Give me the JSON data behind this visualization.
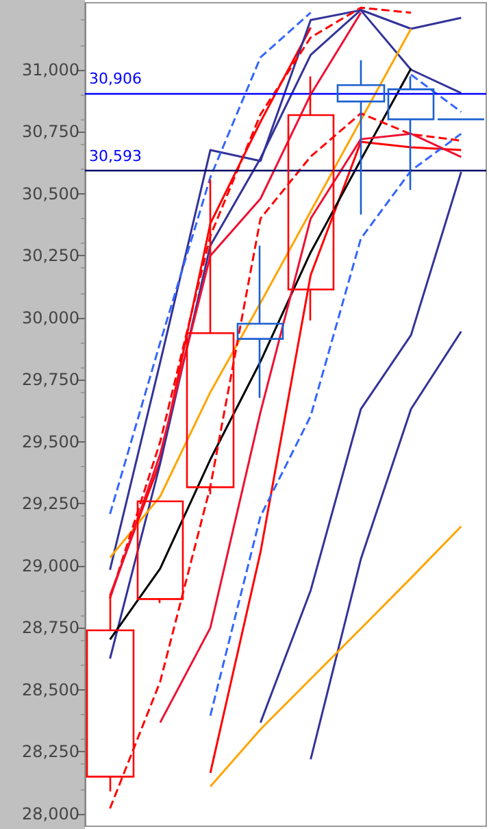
{
  "chart_data": {
    "type": "candlestick",
    "categories": [
      null,
      null,
      null,
      null,
      null,
      null,
      null,
      null
    ],
    "ohlc": [
      [
        28740,
        28880,
        28090,
        28150
      ],
      [
        29260,
        29260,
        28850,
        28866
      ],
      [
        29938,
        30557,
        29288,
        29317
      ],
      [
        29915,
        30291,
        29677,
        29976
      ],
      [
        30817,
        30973,
        29989,
        30114
      ],
      [
        30872,
        31038,
        30416,
        30938
      ],
      [
        30800,
        30973,
        30515,
        30921
      ],
      [
        30800,
        30800,
        30800,
        30800
      ]
    ],
    "colors": [
      "#ff0000",
      "#ff0000",
      "#ff0000",
      "#1a5fd0",
      "#ff0000",
      "#1a5fd0",
      "#1a5fd0",
      "#1a5fd0"
    ],
    "series": [
      {
        "type": "line",
        "color": "#ff0000",
        "values": [
          28880,
          29420,
          30380,
          30790,
          31170,
          null,
          null,
          null
        ]
      },
      {
        "type": "line",
        "color": "#ff0000",
        "values": [
          null,
          null,
          28165,
          29055,
          30172,
          30709,
          30687,
          30676
        ]
      },
      {
        "type": "line",
        "color": "#333399",
        "values": [
          28626,
          29412,
          30291,
          30643,
          31060,
          31241,
          31165,
          31209
        ]
      },
      {
        "type": "line",
        "color": "#333399",
        "values": [
          null,
          null,
          null,
          null,
          28220,
          29027,
          29632,
          29945
        ]
      },
      {
        "type": "line",
        "color": "#333399",
        "values": [
          28984,
          29820,
          30676,
          30632,
          31200,
          31240,
          31000,
          30906
        ]
      },
      {
        "type": "line",
        "color": "#333399",
        "values": [
          null,
          null,
          null,
          28368,
          28901,
          29632,
          29930,
          30588
        ]
      },
      {
        "type": "line",
        "color": "#ffa500",
        "values": [
          29033,
          29280,
          29700,
          30060,
          30429,
          30797,
          31165,
          null
        ]
      },
      {
        "type": "line",
        "color": "#ffa500",
        "values": [
          null,
          null,
          28110,
          28341,
          28544,
          28747,
          28951,
          29159
        ]
      },
      {
        "type": "line",
        "color": "#000000",
        "values": [
          28703,
          28989,
          29429,
          29824,
          30264,
          30637,
          31005,
          null
        ]
      },
      {
        "type": "line",
        "color": "#3366ff",
        "line_style": "dashed",
        "values": [
          29209,
          29900,
          30566,
          31050,
          31230,
          null,
          30980,
          30830
        ]
      },
      {
        "type": "line",
        "color": "#3366ff",
        "line_style": "dashed",
        "values": [
          null,
          null,
          28396,
          29200,
          29604,
          30319,
          30593,
          30742
        ]
      },
      {
        "type": "line",
        "color": "#ff0000",
        "line_style": "dashed",
        "values": [
          28870,
          29500,
          30330,
          30820,
          31130,
          31250,
          31230,
          null
        ]
      },
      {
        "type": "line",
        "color": "#ff0000",
        "line_style": "dashed",
        "values": [
          28022,
          28533,
          29319,
          30400,
          30650,
          30824,
          30740,
          30714
        ]
      },
      {
        "type": "line",
        "color": "#ee1133",
        "values": [
          null,
          28368,
          28750,
          29620,
          30400,
          30720,
          30742,
          30648
        ]
      },
      {
        "type": "line",
        "color": "#ee1133",
        "values": [
          28870,
          29450,
          30250,
          30480,
          30900,
          31230,
          null,
          null
        ]
      }
    ],
    "ylim": [
      27950,
      31270
    ],
    "yticks": [
      {
        "value": 28000,
        "label": "28,000"
      },
      {
        "value": 28250,
        "label": "28,250"
      },
      {
        "value": 28500,
        "label": "28,500"
      },
      {
        "value": 28750,
        "label": "28,750"
      },
      {
        "value": 29000,
        "label": "29,000"
      },
      {
        "value": 29250,
        "label": "29,250"
      },
      {
        "value": 29500,
        "label": "29,500"
      },
      {
        "value": 29750,
        "label": "29,750"
      },
      {
        "value": 30000,
        "label": "30,000"
      },
      {
        "value": 30250,
        "label": "30,250"
      },
      {
        "value": 30500,
        "label": "30,500"
      },
      {
        "value": 30750,
        "label": "30,750"
      },
      {
        "value": 31000,
        "label": "31,000"
      }
    ],
    "ref_lines": [
      {
        "axis": "y",
        "value": 30906,
        "label": "30,906",
        "color": "#0000ff"
      },
      {
        "axis": "y",
        "value": 30593,
        "label": "30,593",
        "color": "#000066"
      }
    ],
    "tick_labels": "y",
    "grid": false,
    "marker": "none"
  }
}
